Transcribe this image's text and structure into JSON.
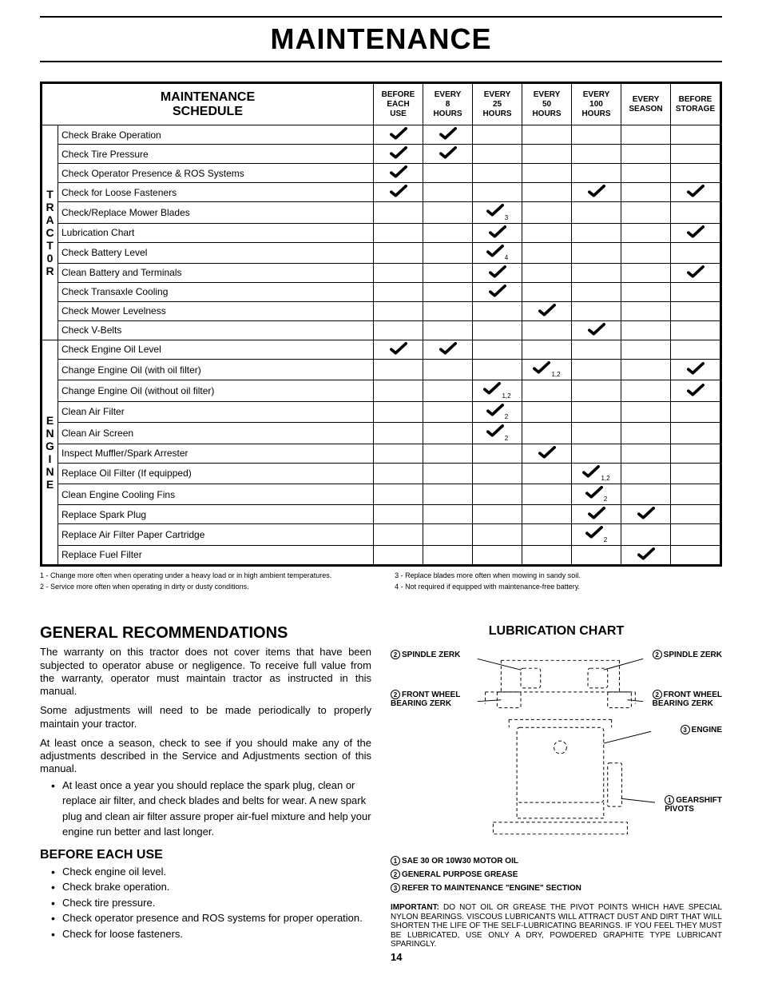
{
  "page": {
    "title": "MAINTENANCE",
    "number": "14"
  },
  "schedule": {
    "heading_l1": "MAINTENANCE",
    "heading_l2": "SCHEDULE",
    "columns": [
      "BEFORE\nEACH\nUSE",
      "EVERY\n8\nHOURS",
      "EVERY\n25\nHOURS",
      "EVERY\n50\nHOURS",
      "EVERY\n100\nHOURS",
      "EVERY\nSEASON",
      "BEFORE\nSTORAGE"
    ],
    "groups": [
      {
        "label": "T\nR\nA\nC\nT\n0\nR",
        "rows": [
          {
            "task": "Check Brake Operation",
            "marks": [
              {
                "c": 0
              },
              {
                "c": 1
              }
            ]
          },
          {
            "task": "Check Tire Pressure",
            "marks": [
              {
                "c": 0
              },
              {
                "c": 1
              }
            ]
          },
          {
            "task": "Check Operator Presence & ROS Systems",
            "marks": [
              {
                "c": 0
              }
            ]
          },
          {
            "task": "Check for Loose Fasteners",
            "marks": [
              {
                "c": 0
              },
              {
                "c": 4
              },
              {
                "c": 6
              }
            ]
          },
          {
            "task": "Check/Replace Mower Blades",
            "marks": [
              {
                "c": 2,
                "sub": "3"
              }
            ]
          },
          {
            "task": "Lubrication Chart",
            "marks": [
              {
                "c": 2
              },
              {
                "c": 6
              }
            ]
          },
          {
            "task": "Check Battery Level",
            "marks": [
              {
                "c": 2,
                "sub": "4"
              }
            ]
          },
          {
            "task": "Clean Battery and Terminals",
            "marks": [
              {
                "c": 2
              },
              {
                "c": 6
              }
            ]
          },
          {
            "task": "Check Transaxle Cooling",
            "marks": [
              {
                "c": 2
              }
            ]
          },
          {
            "task": "Check Mower Levelness",
            "marks": [
              {
                "c": 3
              }
            ]
          },
          {
            "task": "Check V-Belts",
            "marks": [
              {
                "c": 4
              }
            ]
          }
        ]
      },
      {
        "label": "E\nN\nG\nI\nN\nE",
        "rows": [
          {
            "task": "Check Engine Oil Level",
            "marks": [
              {
                "c": 0
              },
              {
                "c": 1
              }
            ]
          },
          {
            "task": "Change Engine Oil (with oil filter)",
            "marks": [
              {
                "c": 3,
                "sub": "1,2"
              },
              {
                "c": 6
              }
            ]
          },
          {
            "task": "Change Engine Oil (without oil filter)",
            "marks": [
              {
                "c": 2,
                "sub": "1,2"
              },
              {
                "c": 6
              }
            ]
          },
          {
            "task": "Clean Air Filter",
            "marks": [
              {
                "c": 2,
                "sub": "2"
              }
            ]
          },
          {
            "task": "Clean Air Screen",
            "marks": [
              {
                "c": 2,
                "sub": "2"
              }
            ]
          },
          {
            "task": "Inspect Muffler/Spark Arrester",
            "marks": [
              {
                "c": 3
              }
            ]
          },
          {
            "task": "Replace Oil Filter (If equipped)",
            "marks": [
              {
                "c": 4,
                "sub": "1,2"
              }
            ]
          },
          {
            "task": "Clean Engine Cooling Fins",
            "marks": [
              {
                "c": 4,
                "sub": "2"
              }
            ]
          },
          {
            "task": "Replace Spark Plug",
            "marks": [
              {
                "c": 4
              },
              {
                "c": 5
              }
            ]
          },
          {
            "task": "Replace Air Filter Paper Cartridge",
            "marks": [
              {
                "c": 4,
                "sub": "2"
              }
            ]
          },
          {
            "task": "Replace Fuel Filter",
            "marks": [
              {
                "c": 5
              }
            ]
          }
        ]
      }
    ],
    "footnotes": {
      "left": [
        "1 - Change more often when operating under a heavy load or in high ambient temperatures.",
        "2 - Service more often when operating in dirty or dusty conditions."
      ],
      "right": [
        "3 - Replace blades more often when mowing in sandy soil.",
        "4 - Not required if equipped with maintenance-free battery."
      ]
    }
  },
  "general": {
    "heading": "GENERAL RECOMMENDATIONS",
    "p1": "The warranty on this tractor does not cover items that have been subjected to operator abuse or negligence.  To receive full value from the warranty, operator must maintain tractor as instructed in this manual.",
    "p2": "Some adjustments will need to be made periodically to properly maintain your tractor.",
    "p3": "At least once a season, check to see if you should make any of the adjustments described in the Service and Adjustments section of this manual.",
    "bullet_long": "At least once a year you should replace the spark plug, clean or replace air filter, and check blades and belts for wear.  A new spark plug and clean air filter assure proper air-fuel mixture and help your engine run better and last longer.",
    "before_heading": "BEFORE EACH USE",
    "before_items": [
      "Check engine oil level.",
      "Check brake operation.",
      "Check tire pressure.",
      "Check operator presence and ROS systems for proper operation.",
      "Check for loose fasteners."
    ]
  },
  "lube": {
    "title": "LUBRICATION CHART",
    "labels": {
      "spindle_l": "SPINDLE ZERK",
      "spindle_r": "SPINDLE ZERK",
      "fw_l_1": "FRONT WHEEL",
      "fw_l_2": "BEARING ZERK",
      "fw_r_1": "FRONT WHEEL",
      "fw_r_2": "BEARING ZERK",
      "engine": "ENGINE",
      "gearshift_1": "GEARSHIFT",
      "gearshift_2": "PIVOTS"
    },
    "legend": {
      "l1": "SAE 30 OR 10W30 MOTOR OIL",
      "l2": "GENERAL PURPOSE GREASE",
      "l3": "REFER TO MAINTENANCE \"ENGINE\"  SECTION"
    },
    "important_label": "IMPORTANT:",
    "important_text": "DO NOT OIL OR GREASE THE PIVOT POINTS WHICH HAVE SPECIAL NYLON BEARINGS.  VISCOUS LUBRICANTS WILL ATTRACT DUST AND DIRT THAT WILL SHORTEN THE LIFE OF THE SELF-LUBRICATING BEARINGS.  IF YOU FEEL THEY MUST BE LUBRICATED, USE ONLY A DRY, POWDERED GRAPHITE TYPE LUBRICANT SPARINGLY."
  },
  "style": {
    "check_color": "#000000"
  }
}
